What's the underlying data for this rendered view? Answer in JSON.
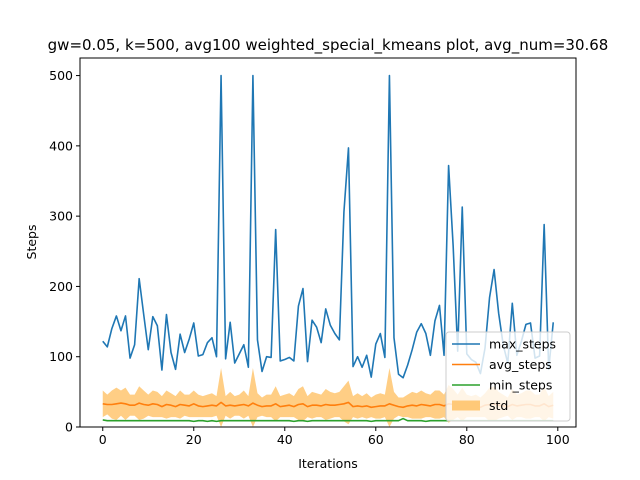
{
  "chart_data": {
    "type": "line",
    "title": "gw=0.05, k=500, avg100 weighted_special_kmeans plot, avg_num=30.68",
    "xlabel": "Iterations",
    "ylabel": "Steps",
    "xlim": [
      -5,
      104
    ],
    "ylim": [
      0,
      525
    ],
    "xticks": [
      0,
      20,
      40,
      60,
      80,
      100
    ],
    "yticks": [
      0,
      100,
      200,
      300,
      400,
      500
    ],
    "grid": false,
    "legend_position": "lower-right",
    "x": [
      0,
      1,
      2,
      3,
      4,
      5,
      6,
      7,
      8,
      9,
      10,
      11,
      12,
      13,
      14,
      15,
      16,
      17,
      18,
      19,
      20,
      21,
      22,
      23,
      24,
      25,
      26,
      27,
      28,
      29,
      30,
      31,
      32,
      33,
      34,
      35,
      36,
      37,
      38,
      39,
      40,
      41,
      42,
      43,
      44,
      45,
      46,
      47,
      48,
      49,
      50,
      51,
      52,
      53,
      54,
      55,
      56,
      57,
      58,
      59,
      60,
      61,
      62,
      63,
      64,
      65,
      66,
      67,
      68,
      69,
      70,
      71,
      72,
      73,
      74,
      75,
      76,
      77,
      78,
      79,
      80,
      81,
      82,
      83,
      84,
      85,
      86,
      87,
      88,
      89,
      90,
      91,
      92,
      93,
      94,
      95,
      96,
      97,
      98,
      99
    ],
    "series": [
      {
        "name": "max_steps",
        "color": "#1f77b4",
        "values": [
          122,
          114,
          140,
          158,
          137,
          158,
          98,
          117,
          211,
          160,
          110,
          157,
          144,
          81,
          160,
          106,
          82,
          132,
          106,
          125,
          148,
          101,
          103,
          120,
          127,
          100,
          500,
          97,
          149,
          91,
          104,
          117,
          85,
          500,
          124,
          79,
          100,
          99,
          281,
          94,
          96,
          99,
          94,
          172,
          197,
          93,
          152,
          142,
          120,
          168,
          145,
          133,
          124,
          306,
          397,
          86,
          100,
          85,
          102,
          71,
          118,
          133,
          99,
          500,
          127,
          75,
          70,
          88,
          110,
          135,
          147,
          133,
          102,
          151,
          173,
          102,
          372,
          258,
          108,
          313,
          104,
          96,
          92,
          76,
          112,
          184,
          224,
          162,
          117,
          91,
          176,
          102,
          122,
          146,
          148,
          98,
          101,
          288,
          82,
          149
        ]
      },
      {
        "name": "avg_steps",
        "color": "#ff7f0e",
        "values": [
          33,
          32,
          32,
          33,
          34,
          33,
          31,
          31,
          34,
          32,
          31,
          33,
          32,
          29,
          32,
          31,
          29,
          32,
          31,
          30,
          33,
          30,
          29,
          30,
          31,
          30,
          35,
          30,
          31,
          30,
          31,
          32,
          30,
          34,
          31,
          29,
          30,
          30,
          33,
          29,
          30,
          31,
          29,
          32,
          33,
          29,
          31,
          31,
          30,
          32,
          31,
          31,
          32,
          33,
          35,
          29,
          30,
          29,
          30,
          28,
          29,
          30,
          30,
          33,
          31,
          29,
          28,
          30,
          31,
          30,
          32,
          31,
          30,
          32,
          32,
          30,
          33,
          32,
          30,
          32,
          30,
          29,
          30,
          28,
          31,
          32,
          33,
          31,
          30,
          29,
          32,
          30,
          31,
          32,
          32,
          30,
          30,
          33,
          29,
          31
        ]
      },
      {
        "name": "min_steps",
        "color": "#2ca02c",
        "values": [
          10,
          9,
          9,
          9,
          9,
          9,
          9,
          9,
          9,
          9,
          9,
          9,
          9,
          9,
          9,
          9,
          9,
          9,
          9,
          9,
          8,
          9,
          9,
          8,
          9,
          8,
          9,
          9,
          9,
          9,
          9,
          9,
          9,
          9,
          9,
          9,
          9,
          9,
          9,
          9,
          9,
          9,
          8,
          9,
          9,
          8,
          9,
          9,
          9,
          9,
          9,
          9,
          9,
          9,
          9,
          9,
          9,
          9,
          9,
          8,
          9,
          9,
          9,
          9,
          9,
          9,
          12,
          9,
          9,
          9,
          9,
          8,
          9,
          9,
          9,
          9,
          9,
          9,
          9,
          9,
          9,
          9,
          9,
          9,
          9,
          9,
          9,
          9,
          9,
          9,
          9,
          9,
          9,
          9,
          9,
          9,
          9,
          9,
          9,
          9
        ]
      }
    ],
    "std_band": {
      "name": "std",
      "color": "#ffc978",
      "upper": [
        52,
        46,
        52,
        56,
        52,
        56,
        46,
        46,
        58,
        52,
        46,
        52,
        50,
        44,
        52,
        48,
        44,
        52,
        46,
        46,
        52,
        46,
        44,
        46,
        48,
        44,
        84,
        44,
        50,
        44,
        46,
        52,
        44,
        84,
        48,
        42,
        46,
        46,
        58,
        44,
        46,
        48,
        44,
        54,
        58,
        44,
        50,
        48,
        46,
        54,
        50,
        48,
        50,
        58,
        66,
        44,
        48,
        44,
        48,
        42,
        46,
        48,
        46,
        84,
        50,
        42,
        42,
        46,
        50,
        48,
        52,
        48,
        46,
        52,
        52,
        46,
        60,
        54,
        46,
        56,
        46,
        44,
        46,
        42,
        48,
        56,
        58,
        50,
        46,
        42,
        54,
        46,
        48,
        52,
        52,
        46,
        46,
        58,
        44,
        50
      ],
      "lower": [
        14,
        18,
        12,
        10,
        16,
        10,
        16,
        16,
        10,
        12,
        16,
        14,
        14,
        14,
        12,
        14,
        14,
        12,
        16,
        14,
        14,
        14,
        14,
        14,
        14,
        16,
        0,
        16,
        12,
        16,
        16,
        12,
        16,
        0,
        14,
        16,
        14,
        14,
        8,
        14,
        14,
        14,
        14,
        10,
        8,
        14,
        12,
        14,
        14,
        10,
        12,
        14,
        14,
        8,
        4,
        14,
        12,
        14,
        12,
        14,
        12,
        12,
        14,
        0,
        12,
        16,
        14,
        14,
        12,
        12,
        12,
        14,
        14,
        12,
        12,
        14,
        6,
        10,
        14,
        8,
        14,
        14,
        14,
        14,
        14,
        8,
        8,
        12,
        14,
        16,
        10,
        14,
        14,
        12,
        12,
        14,
        14,
        8,
        14,
        12
      ]
    }
  }
}
